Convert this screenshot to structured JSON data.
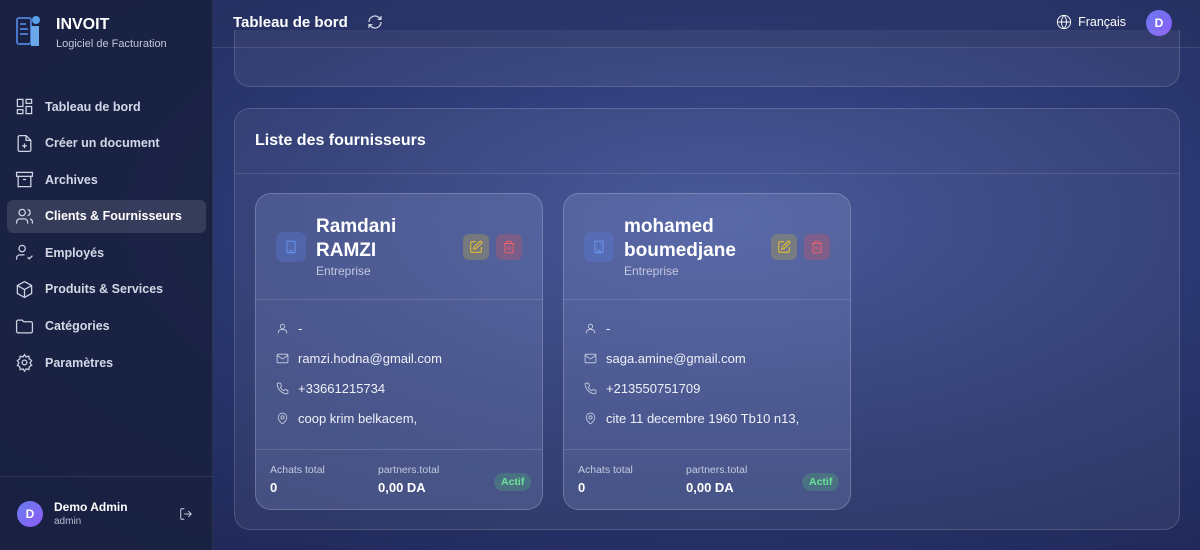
{
  "brand": {
    "name": "INVOIT",
    "subtitle": "Logiciel de Facturation"
  },
  "sidebar": {
    "items": [
      {
        "label": "Tableau de bord",
        "icon": "dashboard-icon"
      },
      {
        "label": "Créer un document",
        "icon": "file-plus-icon"
      },
      {
        "label": "Archives",
        "icon": "archive-icon"
      },
      {
        "label": "Clients & Fournisseurs",
        "icon": "users-icon",
        "active": true
      },
      {
        "label": "Employés",
        "icon": "user-check-icon"
      },
      {
        "label": "Produits & Services",
        "icon": "package-icon"
      },
      {
        "label": "Catégories",
        "icon": "folder-icon"
      },
      {
        "label": "Paramètres",
        "icon": "gear-icon"
      }
    ]
  },
  "user": {
    "initial": "D",
    "name": "Demo Admin",
    "role": "admin"
  },
  "header": {
    "title": "Tableau de bord",
    "language": "Français",
    "avatar_initial": "D"
  },
  "section": {
    "title": "Liste des fournisseurs"
  },
  "suppliers": [
    {
      "name": "Ramdani RAMZI",
      "type": "Entreprise",
      "contact": "-",
      "email": "ramzi.hodna@gmail.com",
      "phone": "+33661215734",
      "address": "coop krim belkacem,",
      "purchases_label": "Achats total",
      "purchases": "0",
      "total_label": "partners.total",
      "total": "0,00 DA",
      "status": "Actif"
    },
    {
      "name": "mohamed boumedjane",
      "type": "Entreprise",
      "contact": "-",
      "email": "saga.amine@gmail.com",
      "phone": "+213550751709",
      "address": "cite 11 decembre 1960 Tb10 n13,",
      "purchases_label": "Achats total",
      "purchases": "0",
      "total_label": "partners.total",
      "total": "0,00 DA",
      "status": "Actif"
    }
  ],
  "colors": {
    "accent": "#6d9cf5",
    "edit": "#f2c230",
    "delete": "#f0606a",
    "active": "#6ee39a"
  }
}
